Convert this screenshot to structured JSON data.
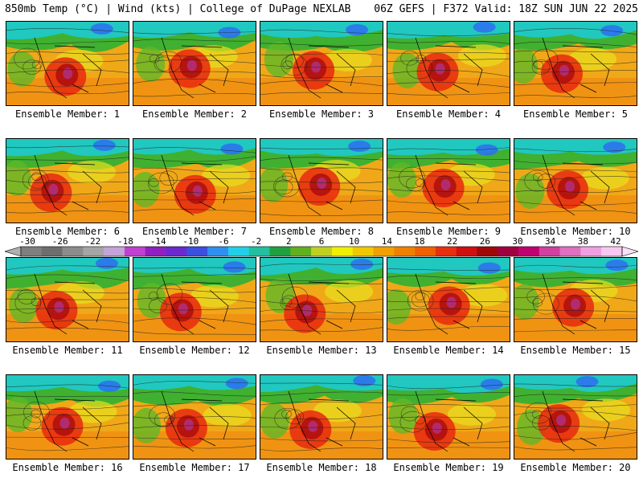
{
  "header": {
    "left": "850mb Temp (°C) | Wind (kts) | College of DuPage NEXLAB",
    "right": "06Z GEFS | F372 Valid: 18Z SUN JUN 22 2025"
  },
  "panels": [
    {
      "label": "Ensemble Member: 1"
    },
    {
      "label": "Ensemble Member: 2"
    },
    {
      "label": "Ensemble Member: 3"
    },
    {
      "label": "Ensemble Member: 4"
    },
    {
      "label": "Ensemble Member: 5"
    },
    {
      "label": "Ensemble Member: 6"
    },
    {
      "label": "Ensemble Member: 7"
    },
    {
      "label": "Ensemble Member: 8"
    },
    {
      "label": "Ensemble Member: 9"
    },
    {
      "label": "Ensemble Member: 10"
    },
    {
      "label": "Ensemble Member: 11"
    },
    {
      "label": "Ensemble Member: 12"
    },
    {
      "label": "Ensemble Member: 13"
    },
    {
      "label": "Ensemble Member: 14"
    },
    {
      "label": "Ensemble Member: 15"
    },
    {
      "label": "Ensemble Member: 16"
    },
    {
      "label": "Ensemble Member: 17"
    },
    {
      "label": "Ensemble Member: 18"
    },
    {
      "label": "Ensemble Member: 19"
    },
    {
      "label": "Ensemble Member: 20"
    }
  ],
  "colorbar": {
    "ticks": [
      "-30",
      "-26",
      "-22",
      "-18",
      "-14",
      "-10",
      "-6",
      "-2",
      "2",
      "6",
      "10",
      "14",
      "18",
      "22",
      "26",
      "30",
      "34",
      "38",
      "42"
    ],
    "colors": [
      "#7f7f7f",
      "#6e6e6e",
      "#8c8c8c",
      "#a5a5a5",
      "#c4a4d8",
      "#c040d0",
      "#9020c0",
      "#6a2ad0",
      "#3b4fe0",
      "#2e8ff0",
      "#20d0e8",
      "#20c0a0",
      "#20a040",
      "#60b020",
      "#c0d020",
      "#f0f000",
      "#f0c800",
      "#f0a000",
      "#f08000",
      "#f06000",
      "#e83010",
      "#d01010",
      "#a00808",
      "#a00040",
      "#c00070",
      "#d040a0",
      "#e070c0",
      "#f0a0e0",
      "#f8c8f0"
    ]
  }
}
